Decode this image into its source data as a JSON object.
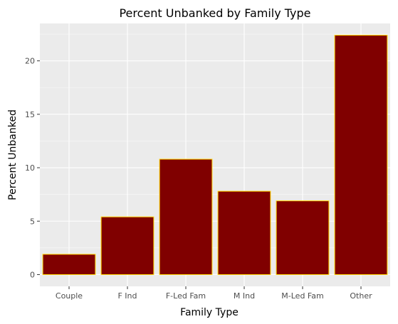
{
  "chart_data": {
    "type": "bar",
    "title": "Percent Unbanked by Family Type",
    "xlabel": "Family Type",
    "ylabel": "Percent Unbanked",
    "categories": [
      "Couple",
      "F Ind",
      "F-Led Fam",
      "M Ind",
      "M-Led Fam",
      "Other"
    ],
    "values": [
      1.9,
      5.4,
      10.8,
      7.8,
      6.9,
      22.4
    ],
    "ylim": [
      -1.1,
      23.5
    ],
    "yticks": [
      0,
      5,
      10,
      15,
      20
    ],
    "grid": true,
    "colors": {
      "bar_fill": "#800000",
      "bar_outline": "#FFD700",
      "panel": "#EBEBEB",
      "grid_major": "#FFFFFF",
      "tick": "#333333"
    }
  }
}
